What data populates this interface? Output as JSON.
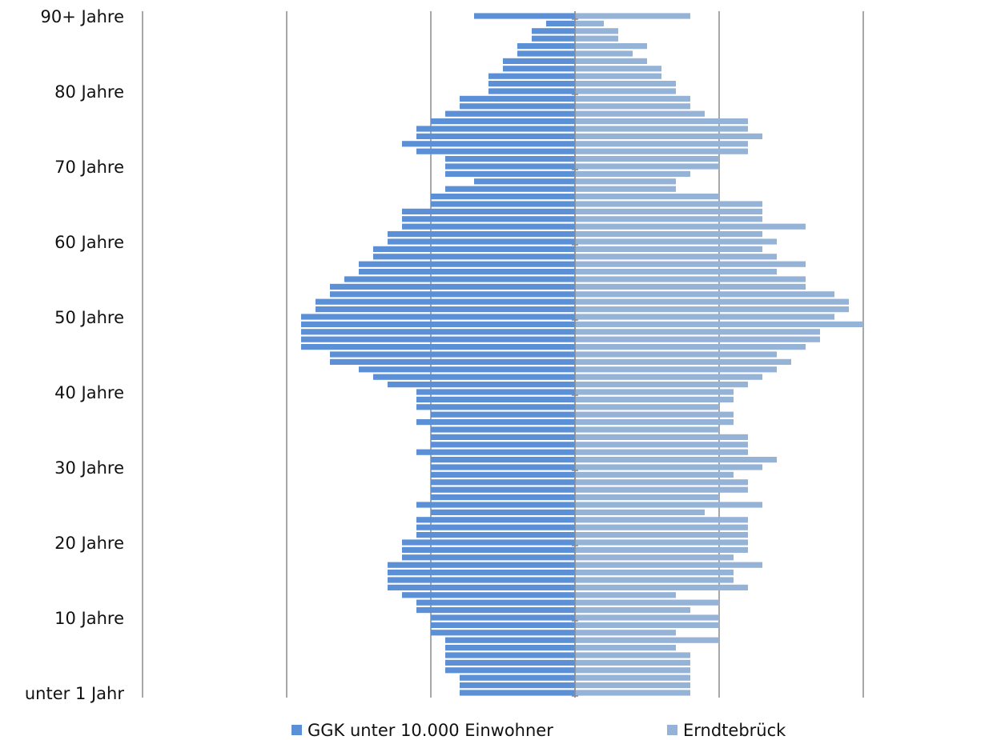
{
  "chart_data": {
    "type": "pyramid",
    "categories": [
      "unter 1 Jahr",
      null,
      null,
      null,
      null,
      null,
      null,
      null,
      null,
      null,
      "10 Jahre",
      null,
      null,
      null,
      null,
      null,
      null,
      null,
      null,
      null,
      "20 Jahre",
      null,
      null,
      null,
      null,
      null,
      null,
      null,
      null,
      null,
      "30 Jahre",
      null,
      null,
      null,
      null,
      null,
      null,
      null,
      null,
      null,
      "40 Jahre",
      null,
      null,
      null,
      null,
      null,
      null,
      null,
      null,
      null,
      "50 Jahre",
      null,
      null,
      null,
      null,
      null,
      null,
      null,
      null,
      null,
      "60 Jahre",
      null,
      null,
      null,
      null,
      null,
      null,
      null,
      null,
      null,
      "70 Jahre",
      null,
      null,
      null,
      null,
      null,
      null,
      null,
      null,
      null,
      "80 Jahre",
      null,
      null,
      null,
      null,
      null,
      null,
      null,
      null,
      null,
      "90+ Jahre"
    ],
    "series": [
      {
        "name": "GGK unter 10.000 Einwohner",
        "color": "#5b8fd6",
        "side": "left",
        "values": [
          0.8,
          0.8,
          0.8,
          0.9,
          0.9,
          0.9,
          0.9,
          0.9,
          1.0,
          1.0,
          1.0,
          1.1,
          1.1,
          1.2,
          1.3,
          1.3,
          1.3,
          1.3,
          1.2,
          1.2,
          1.2,
          1.1,
          1.1,
          1.1,
          1.0,
          1.1,
          1.0,
          1.0,
          1.0,
          1.0,
          1.0,
          1.0,
          1.1,
          1.0,
          1.0,
          1.0,
          1.1,
          1.0,
          1.1,
          1.1,
          1.1,
          1.3,
          1.4,
          1.5,
          1.7,
          1.7,
          1.9,
          1.9,
          1.9,
          1.9,
          1.9,
          1.8,
          1.8,
          1.7,
          1.7,
          1.6,
          1.5,
          1.5,
          1.4,
          1.4,
          1.3,
          1.3,
          1.2,
          1.2,
          1.2,
          1.0,
          1.0,
          0.9,
          0.7,
          0.9,
          0.9,
          0.9,
          1.1,
          1.2,
          1.1,
          1.1,
          1.0,
          0.9,
          0.8,
          0.8,
          0.6,
          0.6,
          0.6,
          0.5,
          0.5,
          0.4,
          0.4,
          0.3,
          0.3,
          0.2,
          0.7
        ]
      },
      {
        "name": "Erndtebrück",
        "color": "#95b3d7",
        "side": "right",
        "values": [
          0.8,
          0.8,
          0.8,
          0.8,
          0.8,
          0.8,
          0.7,
          1.0,
          0.7,
          1.0,
          1.0,
          0.8,
          1.0,
          0.7,
          1.2,
          1.1,
          1.1,
          1.3,
          1.1,
          1.2,
          1.2,
          1.2,
          1.2,
          1.2,
          0.9,
          1.3,
          1.0,
          1.2,
          1.2,
          1.1,
          1.3,
          1.4,
          1.2,
          1.2,
          1.2,
          1.0,
          1.1,
          1.1,
          1.0,
          1.1,
          1.1,
          1.2,
          1.3,
          1.4,
          1.5,
          1.4,
          1.6,
          1.7,
          1.7,
          2.0,
          1.8,
          1.9,
          1.9,
          1.8,
          1.6,
          1.6,
          1.4,
          1.6,
          1.4,
          1.3,
          1.4,
          1.3,
          1.6,
          1.3,
          1.3,
          1.3,
          1.0,
          0.7,
          0.7,
          0.8,
          1.0,
          1.0,
          1.2,
          1.2,
          1.3,
          1.2,
          1.2,
          0.9,
          0.8,
          0.8,
          0.7,
          0.7,
          0.6,
          0.6,
          0.5,
          0.4,
          0.5,
          0.3,
          0.3,
          0.2,
          0.8
        ]
      }
    ],
    "xlim": [
      -3,
      2
    ],
    "xticks": [
      -3,
      -2,
      -1,
      0,
      1,
      2
    ],
    "grid": true,
    "legend": "bottom"
  }
}
